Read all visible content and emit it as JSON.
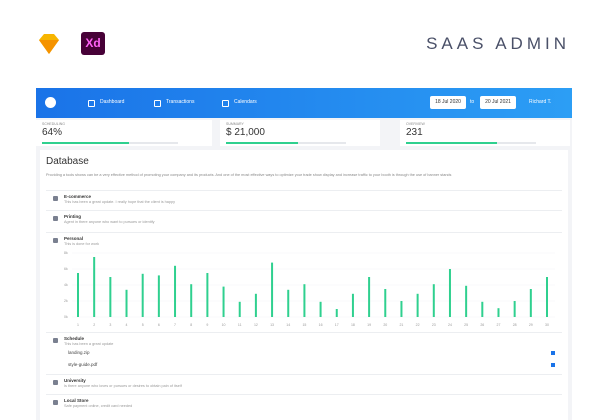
{
  "header": {
    "brand": "SAAS ADMIN"
  },
  "topbar": {
    "nav": [
      "Dashboard",
      "Transactions",
      "Calendars"
    ],
    "date_from": "18 Jul 2020",
    "separator": "to",
    "date_to": "20 Jul 2021",
    "user": "Richard T."
  },
  "stats": [
    {
      "label": "SCHEDULING",
      "value": "64%",
      "progress": 64
    },
    {
      "label": "SUMMARY",
      "value": "$ 21,000",
      "progress": 60
    },
    {
      "label": "OVERVIEW",
      "value": "231",
      "progress": 70
    }
  ],
  "database": {
    "title": "Database",
    "description": "Providing a tools shows can be a very effective method of promoting your company and its products. And one of the most effective ways to optimize your trade show display and increase traffic to your booth is through the use of banner stands",
    "items": [
      {
        "title": "E-commerce",
        "subtitle": "This has been a great update. I really hope that the client is happy"
      },
      {
        "title": "Printing",
        "subtitle": "Agent in there anyone who want to pursues or identify"
      },
      {
        "title": "Personal",
        "subtitle": "This is done for work"
      },
      {
        "title": "Schedule",
        "subtitle": "This has been a great update",
        "files": [
          "landing.zip",
          "style-guide.pdf"
        ]
      },
      {
        "title": "University",
        "subtitle": "Is there anyone who loves or pursues or desires to obtain pain of itself"
      },
      {
        "title": "Local Store",
        "subtitle": "Safe payment online, credit card needed"
      }
    ]
  },
  "chart_data": {
    "type": "bar",
    "color": "#2fd08f",
    "categories": [
      "1",
      "2",
      "3",
      "4",
      "5",
      "6",
      "7",
      "8",
      "9",
      "10",
      "11",
      "12",
      "13",
      "14",
      "15",
      "16",
      "17",
      "18",
      "19",
      "20",
      "21",
      "22",
      "23",
      "24",
      "25",
      "26",
      "27",
      "28",
      "29",
      "30"
    ],
    "values": [
      5.5,
      7.5,
      5,
      3.4,
      5.4,
      5.2,
      6.4,
      4.1,
      5.5,
      3.8,
      1.9,
      2.9,
      6.8,
      3.4,
      4.1,
      1.9,
      1,
      2.9,
      5,
      3.5,
      2,
      2.9,
      4.1,
      6,
      3.9,
      1.9,
      1.1,
      2,
      3.5,
      5
    ],
    "ylim": [
      0,
      8
    ],
    "yticks": [
      {
        "value": 0,
        "label": "0k"
      },
      {
        "value": 2,
        "label": "2k"
      },
      {
        "value": 4,
        "label": "4k"
      },
      {
        "value": 6,
        "label": "6k"
      },
      {
        "value": 8,
        "label": "8k"
      }
    ]
  }
}
